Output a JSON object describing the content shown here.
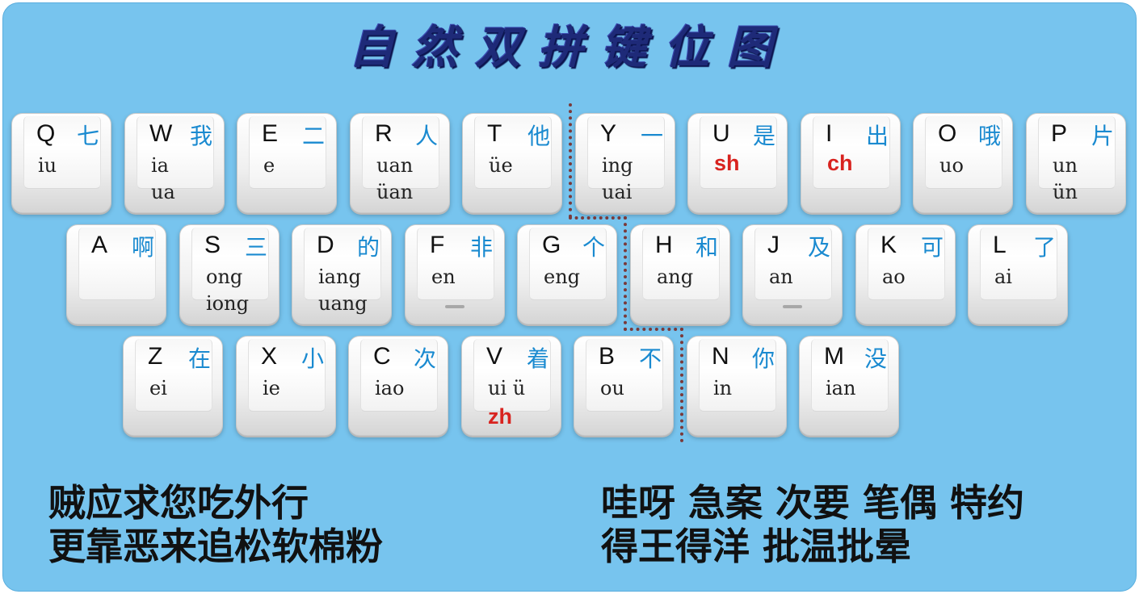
{
  "title": "自然双拼键位图",
  "rows": [
    [
      {
        "letter": "Q",
        "char": "七",
        "finals": [
          "iu"
        ]
      },
      {
        "letter": "W",
        "char": "我",
        "finals": [
          "ia",
          "ua"
        ]
      },
      {
        "letter": "E",
        "char": "二",
        "finals": [
          "e"
        ]
      },
      {
        "letter": "R",
        "char": "人",
        "finals": [
          "uan",
          "üan"
        ]
      },
      {
        "letter": "T",
        "char": "他",
        "finals": [
          "üe"
        ]
      },
      {
        "letter": "Y",
        "char": "一",
        "finals": [
          "ing",
          "uai"
        ]
      },
      {
        "letter": "U",
        "char": "是",
        "finals": [],
        "initial": "sh"
      },
      {
        "letter": "I",
        "char": "出",
        "finals": [],
        "initial": "ch"
      },
      {
        "letter": "O",
        "char": "哦",
        "finals": [
          "uo"
        ]
      },
      {
        "letter": "P",
        "char": "片",
        "finals": [
          "un",
          "ün"
        ]
      }
    ],
    [
      {
        "letter": "A",
        "char": "啊",
        "finals": []
      },
      {
        "letter": "S",
        "char": "三",
        "finals": [
          "ong",
          "iong"
        ]
      },
      {
        "letter": "D",
        "char": "的",
        "finals": [
          "iang",
          "uang"
        ]
      },
      {
        "letter": "F",
        "char": "非",
        "finals": [
          "en"
        ],
        "bump": true
      },
      {
        "letter": "G",
        "char": "个",
        "finals": [
          "eng"
        ]
      },
      {
        "letter": "H",
        "char": "和",
        "finals": [
          "ang"
        ]
      },
      {
        "letter": "J",
        "char": "及",
        "finals": [
          "an"
        ],
        "bump": true
      },
      {
        "letter": "K",
        "char": "可",
        "finals": [
          "ao"
        ]
      },
      {
        "letter": "L",
        "char": "了",
        "finals": [
          "ai"
        ]
      }
    ],
    [
      {
        "letter": "Z",
        "char": "在",
        "finals": [
          "ei"
        ]
      },
      {
        "letter": "X",
        "char": "小",
        "finals": [
          "ie"
        ]
      },
      {
        "letter": "C",
        "char": "次",
        "finals": [
          "iao"
        ]
      },
      {
        "letter": "V",
        "char": "着",
        "finals": [
          "ui ü"
        ],
        "initial": "zh"
      },
      {
        "letter": "B",
        "char": "不",
        "finals": [
          "ou"
        ]
      },
      {
        "letter": "N",
        "char": "你",
        "finals": [
          "in"
        ]
      },
      {
        "letter": "M",
        "char": "没",
        "finals": [
          "ian"
        ]
      }
    ]
  ],
  "mnemonics": {
    "left": [
      "贼应求您吃外行",
      "更靠恶来追松软棉粉"
    ],
    "right": [
      "哇呀 急案 次要 笔偶 特约",
      "得王得洋 批温批晕"
    ]
  },
  "colors": {
    "background": "#77c4ee",
    "title": "#1e2a78",
    "hanzi": "#1a8ad0",
    "initial": "#d8231f",
    "divider": "#7a3a3a"
  }
}
